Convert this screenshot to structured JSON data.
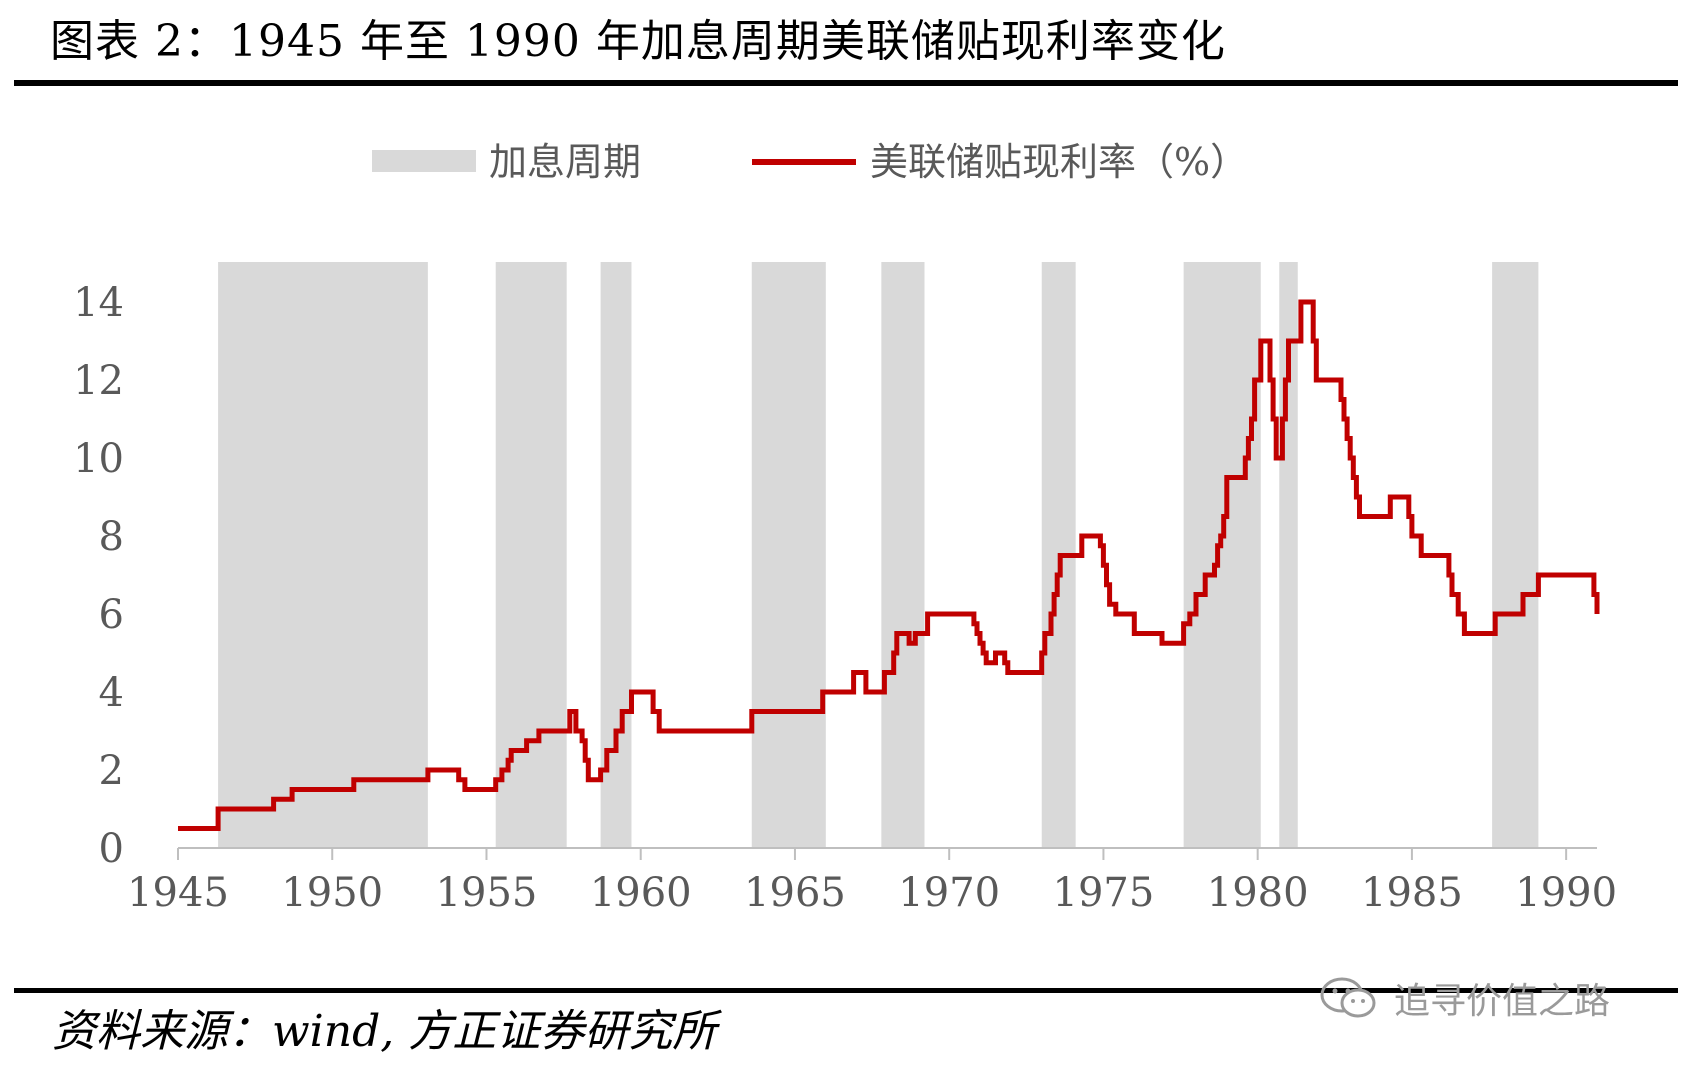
{
  "title": "图表 2：1945 年至 1990 年加息周期美联储贴现利率变化",
  "source": "资料来源：wind, 方正证券研究所",
  "watermark": {
    "text": "追寻价值之路",
    "icon": "wechat-icon"
  },
  "colors": {
    "line": "#c00000",
    "band": "#d9d9d9",
    "axis": "#bfbfbf",
    "tick_text": "#595959"
  },
  "chart_data": {
    "type": "line",
    "title": "",
    "xlabel": "",
    "ylabel": "",
    "xlim": [
      1945,
      1991
    ],
    "ylim": [
      0,
      14
    ],
    "legend_position": "top-center",
    "grid": false,
    "x_ticks": [
      "1945",
      "1950",
      "1955",
      "1960",
      "1965",
      "1970",
      "1975",
      "1980",
      "1985",
      "1990"
    ],
    "y_ticks": [
      "0",
      "2",
      "4",
      "6",
      "8",
      "10",
      "12",
      "14"
    ],
    "bands": {
      "name": "加息周期",
      "ranges": [
        [
          1946.3,
          1953.1
        ],
        [
          1955.3,
          1957.6
        ],
        [
          1958.7,
          1959.7
        ],
        [
          1963.6,
          1966.0
        ],
        [
          1967.8,
          1969.2
        ],
        [
          1973.0,
          1974.1
        ],
        [
          1977.6,
          1980.1
        ],
        [
          1980.7,
          1981.3
        ],
        [
          1987.6,
          1989.1
        ]
      ]
    },
    "series": [
      {
        "name": "美联储贴现利率（%）",
        "step_points": [
          [
            1945.0,
            0.5
          ],
          [
            1946.3,
            1.0
          ],
          [
            1948.1,
            1.25
          ],
          [
            1948.7,
            1.5
          ],
          [
            1950.7,
            1.75
          ],
          [
            1953.1,
            2.0
          ],
          [
            1954.1,
            1.75
          ],
          [
            1954.3,
            1.5
          ],
          [
            1955.3,
            1.75
          ],
          [
            1955.5,
            2.0
          ],
          [
            1955.7,
            2.25
          ],
          [
            1955.8,
            2.5
          ],
          [
            1956.3,
            2.75
          ],
          [
            1956.7,
            3.0
          ],
          [
            1957.7,
            3.5
          ],
          [
            1957.9,
            3.0
          ],
          [
            1958.1,
            2.75
          ],
          [
            1958.2,
            2.25
          ],
          [
            1958.3,
            1.75
          ],
          [
            1958.7,
            2.0
          ],
          [
            1958.9,
            2.5
          ],
          [
            1959.2,
            3.0
          ],
          [
            1959.4,
            3.5
          ],
          [
            1959.7,
            4.0
          ],
          [
            1960.4,
            3.5
          ],
          [
            1960.6,
            3.0
          ],
          [
            1963.6,
            3.5
          ],
          [
            1965.9,
            4.0
          ],
          [
            1966.9,
            4.5
          ],
          [
            1967.3,
            4.0
          ],
          [
            1967.9,
            4.5
          ],
          [
            1968.2,
            5.0
          ],
          [
            1968.3,
            5.5
          ],
          [
            1968.7,
            5.25
          ],
          [
            1968.9,
            5.5
          ],
          [
            1969.3,
            6.0
          ],
          [
            1970.8,
            5.75
          ],
          [
            1970.9,
            5.5
          ],
          [
            1971.0,
            5.25
          ],
          [
            1971.1,
            5.0
          ],
          [
            1971.2,
            4.75
          ],
          [
            1971.5,
            5.0
          ],
          [
            1971.8,
            4.75
          ],
          [
            1971.9,
            4.5
          ],
          [
            1973.0,
            5.0
          ],
          [
            1973.1,
            5.5
          ],
          [
            1973.3,
            6.0
          ],
          [
            1973.4,
            6.5
          ],
          [
            1973.5,
            7.0
          ],
          [
            1973.6,
            7.5
          ],
          [
            1974.3,
            8.0
          ],
          [
            1974.9,
            7.75
          ],
          [
            1975.0,
            7.25
          ],
          [
            1975.1,
            6.75
          ],
          [
            1975.2,
            6.25
          ],
          [
            1975.4,
            6.0
          ],
          [
            1976.0,
            5.5
          ],
          [
            1976.9,
            5.25
          ],
          [
            1977.6,
            5.75
          ],
          [
            1977.8,
            6.0
          ],
          [
            1978.0,
            6.5
          ],
          [
            1978.3,
            7.0
          ],
          [
            1978.6,
            7.25
          ],
          [
            1978.7,
            7.75
          ],
          [
            1978.8,
            8.0
          ],
          [
            1978.9,
            8.5
          ],
          [
            1979.0,
            9.5
          ],
          [
            1979.6,
            10.0
          ],
          [
            1979.7,
            10.5
          ],
          [
            1979.8,
            11.0
          ],
          [
            1979.9,
            12.0
          ],
          [
            1980.1,
            13.0
          ],
          [
            1980.4,
            12.0
          ],
          [
            1980.5,
            11.0
          ],
          [
            1980.6,
            10.0
          ],
          [
            1980.8,
            11.0
          ],
          [
            1980.9,
            12.0
          ],
          [
            1981.0,
            13.0
          ],
          [
            1981.4,
            14.0
          ],
          [
            1981.8,
            13.0
          ],
          [
            1981.9,
            12.0
          ],
          [
            1982.7,
            11.5
          ],
          [
            1982.8,
            11.0
          ],
          [
            1982.9,
            10.5
          ],
          [
            1983.0,
            10.0
          ],
          [
            1983.1,
            9.5
          ],
          [
            1983.2,
            9.0
          ],
          [
            1983.3,
            8.5
          ],
          [
            1984.3,
            9.0
          ],
          [
            1984.9,
            8.5
          ],
          [
            1985.0,
            8.0
          ],
          [
            1985.3,
            7.5
          ],
          [
            1986.2,
            7.0
          ],
          [
            1986.3,
            6.5
          ],
          [
            1986.5,
            6.0
          ],
          [
            1986.7,
            5.5
          ],
          [
            1987.7,
            6.0
          ],
          [
            1988.6,
            6.5
          ],
          [
            1989.1,
            7.0
          ],
          [
            1990.9,
            6.5
          ],
          [
            1991.0,
            6.0
          ]
        ]
      }
    ]
  }
}
